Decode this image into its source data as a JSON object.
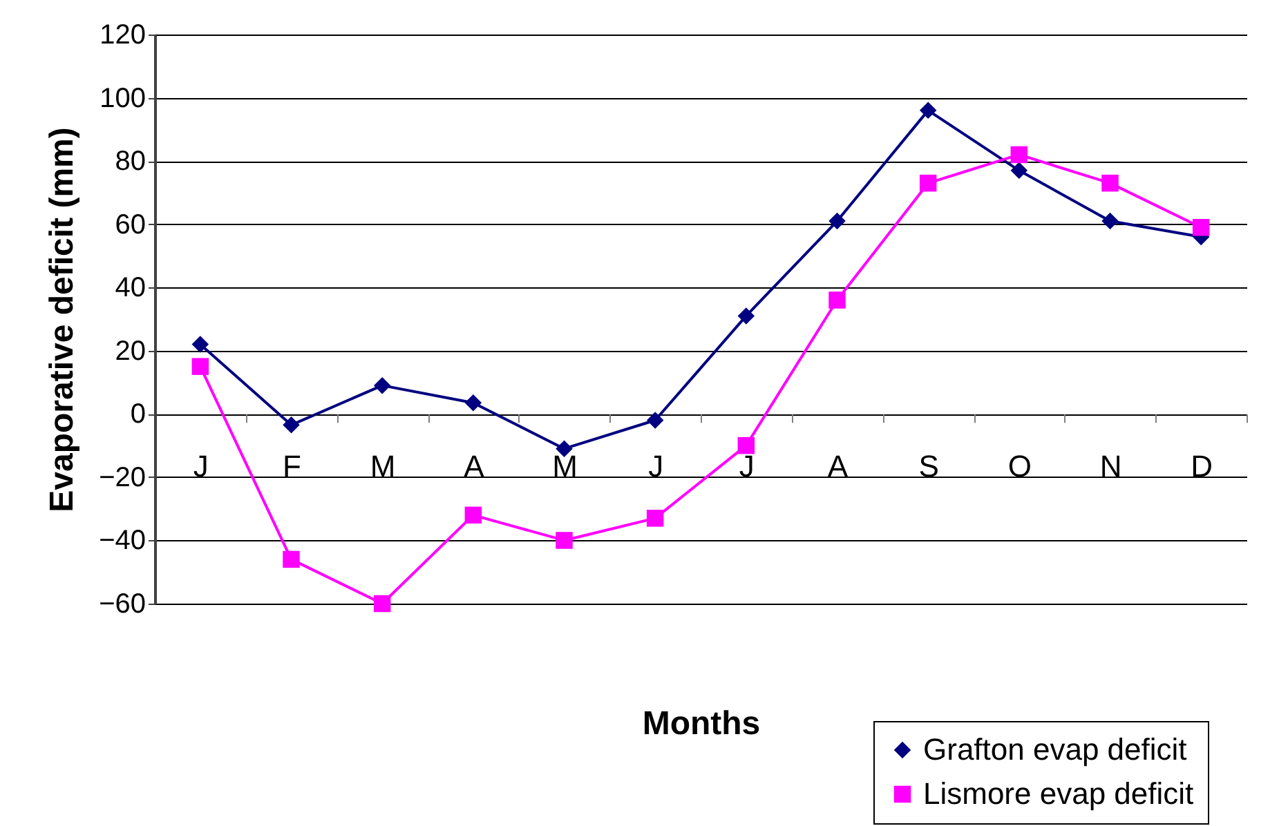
{
  "chart_data": {
    "type": "line",
    "xlabel": "Months",
    "ylabel": "Evaporative deficit (mm)",
    "categories": [
      "J",
      "F",
      "M",
      "A",
      "M",
      "J",
      "J",
      "A",
      "S",
      "O",
      "N",
      "D"
    ],
    "series": [
      {
        "name": "Grafton evap deficit",
        "color": "#000080",
        "marker": "diamond",
        "values": [
          22,
          -3.5,
          9,
          3.5,
          -11,
          -2,
          31,
          61,
          96,
          77,
          61,
          56
        ]
      },
      {
        "name": "Lismore evap deficit",
        "color": "#ff00ff",
        "marker": "square",
        "values": [
          15,
          -46,
          -60,
          -32,
          -40,
          -33,
          -10,
          36,
          73,
          82,
          73,
          59
        ]
      }
    ],
    "ylim": [
      -60,
      120
    ],
    "yticks": [
      -60,
      -40,
      -20,
      0,
      20,
      40,
      60,
      80,
      100,
      120
    ],
    "grid": "y",
    "legend": "bottom right",
    "line_style": "solid"
  }
}
